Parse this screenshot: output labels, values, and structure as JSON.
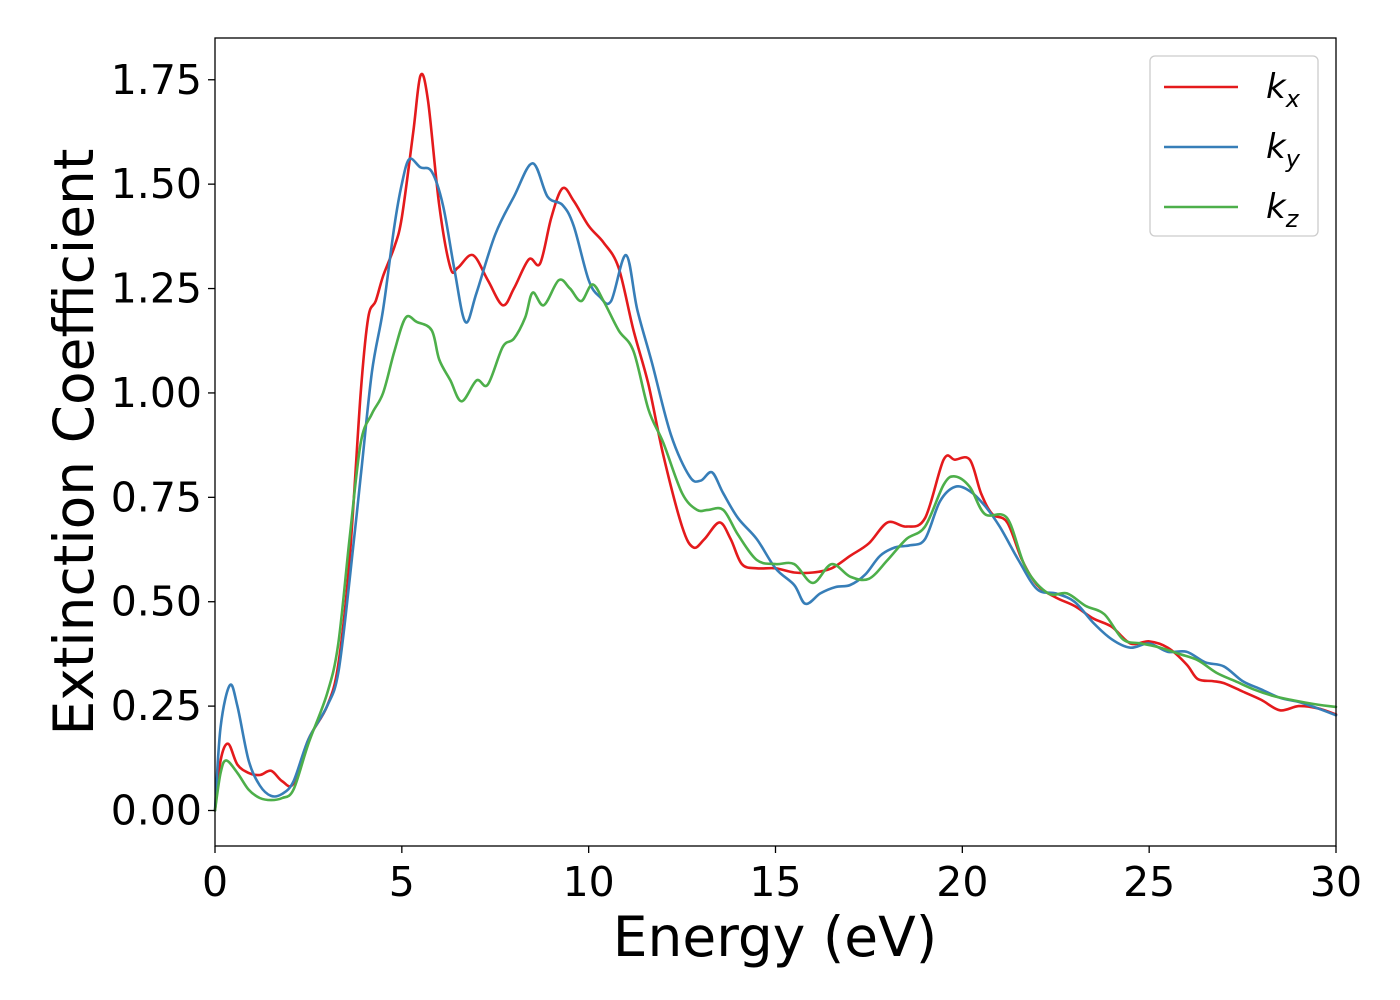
{
  "chart_data": {
    "type": "line",
    "xlabel": "Energy (eV)",
    "ylabel": "Extinction Coefficient",
    "xlim": [
      0,
      30
    ],
    "ylim": [
      -0.085,
      1.85
    ],
    "x_ticks": [
      "0",
      "5",
      "10",
      "15",
      "20",
      "25",
      "30"
    ],
    "y_ticks": [
      "0.00",
      "0.25",
      "0.50",
      "0.75",
      "1.00",
      "1.25",
      "1.50",
      "1.75"
    ],
    "grid": false,
    "legend_position": "top-right",
    "series": [
      {
        "name": "k_x",
        "label_main": "k",
        "label_sub": "x",
        "color": "#e41a1c",
        "points": [
          [
            0,
            0.0
          ],
          [
            0.15,
            0.12
          ],
          [
            0.35,
            0.16
          ],
          [
            0.6,
            0.11
          ],
          [
            0.9,
            0.09
          ],
          [
            1.2,
            0.085
          ],
          [
            1.5,
            0.095
          ],
          [
            1.8,
            0.07
          ],
          [
            2.1,
            0.065
          ],
          [
            2.5,
            0.17
          ],
          [
            3.0,
            0.25
          ],
          [
            3.3,
            0.35
          ],
          [
            3.6,
            0.6
          ],
          [
            3.9,
            1.0
          ],
          [
            4.1,
            1.18
          ],
          [
            4.3,
            1.22
          ],
          [
            4.5,
            1.28
          ],
          [
            4.8,
            1.35
          ],
          [
            5.0,
            1.42
          ],
          [
            5.3,
            1.62
          ],
          [
            5.5,
            1.76
          ],
          [
            5.7,
            1.7
          ],
          [
            6.0,
            1.45
          ],
          [
            6.3,
            1.3
          ],
          [
            6.5,
            1.3
          ],
          [
            6.9,
            1.33
          ],
          [
            7.3,
            1.27
          ],
          [
            7.7,
            1.21
          ],
          [
            8.0,
            1.25
          ],
          [
            8.4,
            1.32
          ],
          [
            8.7,
            1.31
          ],
          [
            9.0,
            1.42
          ],
          [
            9.3,
            1.49
          ],
          [
            9.6,
            1.46
          ],
          [
            10.0,
            1.4
          ],
          [
            10.4,
            1.36
          ],
          [
            10.8,
            1.3
          ],
          [
            11.2,
            1.15
          ],
          [
            11.6,
            1.02
          ],
          [
            12.0,
            0.85
          ],
          [
            12.5,
            0.68
          ],
          [
            12.8,
            0.63
          ],
          [
            13.1,
            0.65
          ],
          [
            13.5,
            0.69
          ],
          [
            13.8,
            0.65
          ],
          [
            14.1,
            0.59
          ],
          [
            14.5,
            0.58
          ],
          [
            15.0,
            0.58
          ],
          [
            15.5,
            0.57
          ],
          [
            16.0,
            0.57
          ],
          [
            16.5,
            0.58
          ],
          [
            17.0,
            0.61
          ],
          [
            17.5,
            0.64
          ],
          [
            18.0,
            0.69
          ],
          [
            18.5,
            0.68
          ],
          [
            19.0,
            0.7
          ],
          [
            19.5,
            0.84
          ],
          [
            19.8,
            0.84
          ],
          [
            20.2,
            0.84
          ],
          [
            20.5,
            0.76
          ],
          [
            20.8,
            0.71
          ],
          [
            21.2,
            0.69
          ],
          [
            21.6,
            0.6
          ],
          [
            22.0,
            0.54
          ],
          [
            22.5,
            0.51
          ],
          [
            23.0,
            0.49
          ],
          [
            23.5,
            0.46
          ],
          [
            24.0,
            0.44
          ],
          [
            24.5,
            0.4
          ],
          [
            25.0,
            0.405
          ],
          [
            25.5,
            0.39
          ],
          [
            26.0,
            0.35
          ],
          [
            26.3,
            0.315
          ],
          [
            26.7,
            0.31
          ],
          [
            27.0,
            0.305
          ],
          [
            27.5,
            0.285
          ],
          [
            28.0,
            0.265
          ],
          [
            28.5,
            0.24
          ],
          [
            29.0,
            0.25
          ],
          [
            29.5,
            0.245
          ],
          [
            30.0,
            0.23
          ]
        ]
      },
      {
        "name": "k_y",
        "label_main": "k",
        "label_sub": "y",
        "color": "#377eb8",
        "points": [
          [
            0,
            0.0
          ],
          [
            0.15,
            0.2
          ],
          [
            0.4,
            0.3
          ],
          [
            0.6,
            0.25
          ],
          [
            0.9,
            0.12
          ],
          [
            1.2,
            0.06
          ],
          [
            1.5,
            0.035
          ],
          [
            1.8,
            0.04
          ],
          [
            2.1,
            0.07
          ],
          [
            2.5,
            0.17
          ],
          [
            3.0,
            0.25
          ],
          [
            3.3,
            0.33
          ],
          [
            3.6,
            0.55
          ],
          [
            3.9,
            0.8
          ],
          [
            4.2,
            1.05
          ],
          [
            4.5,
            1.2
          ],
          [
            4.8,
            1.4
          ],
          [
            5.0,
            1.5
          ],
          [
            5.2,
            1.56
          ],
          [
            5.5,
            1.54
          ],
          [
            5.8,
            1.53
          ],
          [
            6.1,
            1.45
          ],
          [
            6.4,
            1.3
          ],
          [
            6.7,
            1.17
          ],
          [
            7.0,
            1.24
          ],
          [
            7.5,
            1.38
          ],
          [
            8.0,
            1.47
          ],
          [
            8.5,
            1.55
          ],
          [
            8.9,
            1.47
          ],
          [
            9.3,
            1.45
          ],
          [
            9.6,
            1.4
          ],
          [
            10.0,
            1.27
          ],
          [
            10.3,
            1.23
          ],
          [
            10.6,
            1.22
          ],
          [
            11.0,
            1.33
          ],
          [
            11.3,
            1.2
          ],
          [
            11.7,
            1.07
          ],
          [
            12.2,
            0.9
          ],
          [
            12.7,
            0.8
          ],
          [
            13.0,
            0.79
          ],
          [
            13.3,
            0.81
          ],
          [
            13.6,
            0.76
          ],
          [
            14.0,
            0.7
          ],
          [
            14.5,
            0.65
          ],
          [
            15.0,
            0.58
          ],
          [
            15.5,
            0.54
          ],
          [
            15.8,
            0.495
          ],
          [
            16.2,
            0.52
          ],
          [
            16.6,
            0.535
          ],
          [
            17.0,
            0.54
          ],
          [
            17.4,
            0.565
          ],
          [
            17.8,
            0.61
          ],
          [
            18.2,
            0.63
          ],
          [
            18.6,
            0.635
          ],
          [
            19.0,
            0.65
          ],
          [
            19.4,
            0.74
          ],
          [
            19.8,
            0.775
          ],
          [
            20.2,
            0.765
          ],
          [
            20.6,
            0.73
          ],
          [
            21.0,
            0.68
          ],
          [
            21.5,
            0.6
          ],
          [
            22.0,
            0.53
          ],
          [
            22.5,
            0.52
          ],
          [
            23.0,
            0.5
          ],
          [
            23.5,
            0.45
          ],
          [
            24.0,
            0.41
          ],
          [
            24.5,
            0.39
          ],
          [
            25.0,
            0.4
          ],
          [
            25.5,
            0.38
          ],
          [
            26.0,
            0.38
          ],
          [
            26.5,
            0.355
          ],
          [
            27.0,
            0.345
          ],
          [
            27.5,
            0.31
          ],
          [
            28.0,
            0.29
          ],
          [
            28.5,
            0.27
          ],
          [
            29.0,
            0.26
          ],
          [
            29.5,
            0.245
          ],
          [
            30.0,
            0.228
          ]
        ]
      },
      {
        "name": "k_z",
        "label_main": "k",
        "label_sub": "z",
        "color": "#4daf4a",
        "points": [
          [
            0,
            0.0
          ],
          [
            0.15,
            0.09
          ],
          [
            0.3,
            0.12
          ],
          [
            0.6,
            0.09
          ],
          [
            0.9,
            0.05
          ],
          [
            1.2,
            0.03
          ],
          [
            1.5,
            0.025
          ],
          [
            1.8,
            0.03
          ],
          [
            2.1,
            0.05
          ],
          [
            2.5,
            0.16
          ],
          [
            3.0,
            0.28
          ],
          [
            3.3,
            0.4
          ],
          [
            3.6,
            0.65
          ],
          [
            3.9,
            0.88
          ],
          [
            4.2,
            0.95
          ],
          [
            4.5,
            1.0
          ],
          [
            4.8,
            1.1
          ],
          [
            5.1,
            1.18
          ],
          [
            5.4,
            1.17
          ],
          [
            5.8,
            1.15
          ],
          [
            6.0,
            1.08
          ],
          [
            6.3,
            1.03
          ],
          [
            6.6,
            0.98
          ],
          [
            7.0,
            1.03
          ],
          [
            7.3,
            1.02
          ],
          [
            7.7,
            1.11
          ],
          [
            8.0,
            1.13
          ],
          [
            8.3,
            1.18
          ],
          [
            8.5,
            1.24
          ],
          [
            8.8,
            1.21
          ],
          [
            9.2,
            1.27
          ],
          [
            9.5,
            1.25
          ],
          [
            9.8,
            1.22
          ],
          [
            10.1,
            1.26
          ],
          [
            10.4,
            1.22
          ],
          [
            10.8,
            1.15
          ],
          [
            11.2,
            1.1
          ],
          [
            11.6,
            0.96
          ],
          [
            12.0,
            0.88
          ],
          [
            12.5,
            0.76
          ],
          [
            12.9,
            0.72
          ],
          [
            13.2,
            0.72
          ],
          [
            13.6,
            0.72
          ],
          [
            14.0,
            0.66
          ],
          [
            14.5,
            0.6
          ],
          [
            15.0,
            0.59
          ],
          [
            15.5,
            0.59
          ],
          [
            16.0,
            0.545
          ],
          [
            16.5,
            0.59
          ],
          [
            17.0,
            0.56
          ],
          [
            17.5,
            0.555
          ],
          [
            18.0,
            0.6
          ],
          [
            18.5,
            0.65
          ],
          [
            19.0,
            0.68
          ],
          [
            19.5,
            0.78
          ],
          [
            19.8,
            0.8
          ],
          [
            20.2,
            0.775
          ],
          [
            20.6,
            0.71
          ],
          [
            21.2,
            0.7
          ],
          [
            21.7,
            0.58
          ],
          [
            22.3,
            0.52
          ],
          [
            22.8,
            0.52
          ],
          [
            23.3,
            0.49
          ],
          [
            23.8,
            0.47
          ],
          [
            24.3,
            0.41
          ],
          [
            24.8,
            0.4
          ],
          [
            25.3,
            0.39
          ],
          [
            25.8,
            0.375
          ],
          [
            26.3,
            0.36
          ],
          [
            26.8,
            0.33
          ],
          [
            27.3,
            0.31
          ],
          [
            27.8,
            0.29
          ],
          [
            28.3,
            0.275
          ],
          [
            28.8,
            0.265
          ],
          [
            29.4,
            0.255
          ],
          [
            30.0,
            0.248
          ]
        ]
      }
    ]
  }
}
